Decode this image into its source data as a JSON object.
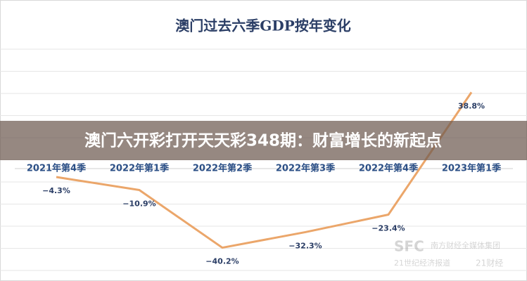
{
  "chart_data": {
    "type": "line",
    "title": "澳门过去六季GDP按年变化",
    "categories": [
      "2021年第4季",
      "2022年第1季",
      "2022年第2季",
      "2022年第3季",
      "2022年第4季",
      "2023年第1季"
    ],
    "values": [
      -4.3,
      -10.9,
      -40.2,
      -32.3,
      -23.4,
      38.8
    ],
    "value_labels": [
      "−4.3%",
      "−10.9%",
      "−40.2%",
      "−32.3%",
      "−23.4%",
      "38.8%"
    ],
    "color": "#eba66a",
    "ylim": [
      -55,
      55
    ],
    "grid": true
  },
  "banner": "澳门六开彩打开天天彩348期：财富增长的新起点",
  "watermark": {
    "logo": "SFC",
    "group": "南方财经全媒体集团",
    "paper": "21世纪经济报道",
    "brand": "21财经"
  }
}
